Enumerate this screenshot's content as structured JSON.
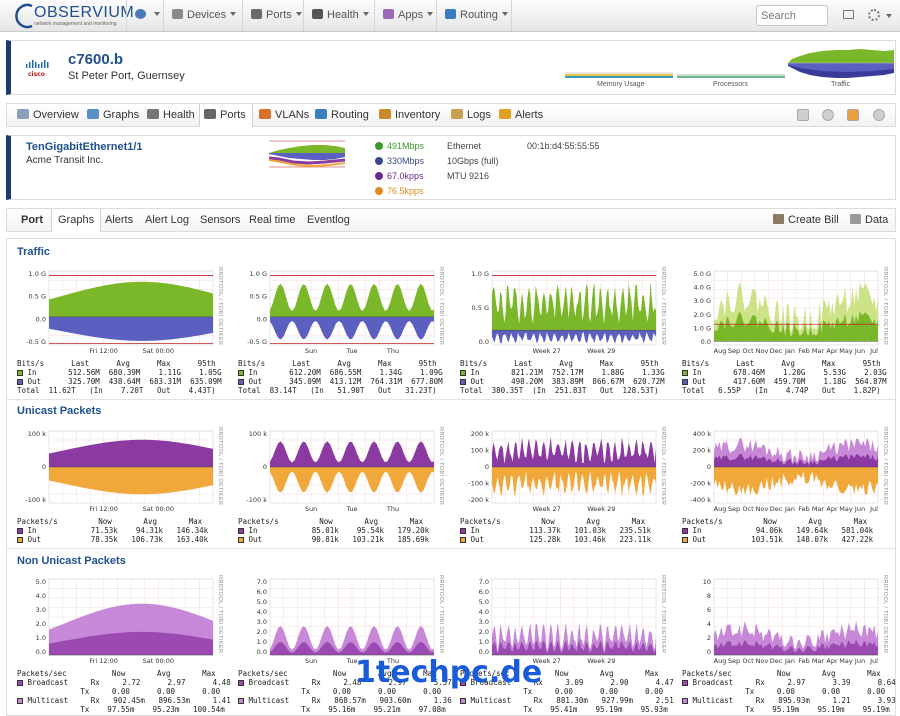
{
  "topnav": {
    "logo_text": "OBSERVIUM",
    "logo_sub": "network management and monitoring",
    "items": [
      {
        "label": "",
        "icon": "globe-icon"
      },
      {
        "label": "Devices",
        "icon": "server-icon"
      },
      {
        "label": "Ports",
        "icon": "port-icon"
      },
      {
        "label": "Health",
        "icon": "heart-monitor-icon"
      },
      {
        "label": "Apps",
        "icon": "apps-icon"
      },
      {
        "label": "Routing",
        "icon": "routing-icon"
      }
    ],
    "search_placeholder": "Search"
  },
  "device": {
    "name": "c7600.b",
    "location": "St Peter Port, Guernsey",
    "vendor_logo": "cisco",
    "mini_graphs": [
      {
        "label": "Memory Usage"
      },
      {
        "label": "Processors"
      },
      {
        "label": "Traffic"
      }
    ]
  },
  "device_tabs": [
    {
      "label": "Overview",
      "icon": "overview-icon",
      "color": "#8aa0b8"
    },
    {
      "label": "Graphs",
      "icon": "graphs-icon",
      "color": "#5a8fc8"
    },
    {
      "label": "Health",
      "icon": "health-icon",
      "color": "#777777"
    },
    {
      "label": "Ports",
      "icon": "ports-icon",
      "color": "#666666"
    },
    {
      "label": "VLANs",
      "icon": "vlans-icon",
      "color": "#d86f2a"
    },
    {
      "label": "Routing",
      "icon": "routing-icon",
      "color": "#3a7ec0"
    },
    {
      "label": "Inventory",
      "icon": "inventory-icon",
      "color": "#c88a2a"
    },
    {
      "label": "Logs",
      "icon": "logs-icon",
      "color": "#c8a050"
    },
    {
      "label": "Alerts",
      "icon": "alerts-icon",
      "color": "#e0a020"
    }
  ],
  "port": {
    "name": "TenGigabitEthernet1/1",
    "description": "Acme Transit Inc.",
    "stats": [
      {
        "value": "491Mbps",
        "color": "#3a9a2a"
      },
      {
        "value": "330Mbps",
        "color": "#3a4a8a"
      },
      {
        "value": "67.0kpps",
        "color": "#6a2a8a"
      },
      {
        "value": "76.5kpps",
        "color": "#e08a20"
      }
    ],
    "type": "Ethernet",
    "speed": "10Gbps (full)",
    "mtu": "MTU 9216",
    "mac": "00:1b:d4:55:55:55"
  },
  "port_tabs": [
    {
      "label": "Port"
    },
    {
      "label": "Graphs"
    },
    {
      "label": "Alerts"
    },
    {
      "label": "Alert Log"
    },
    {
      "label": "Sensors"
    },
    {
      "label": "Real time"
    },
    {
      "label": "Eventlog"
    }
  ],
  "port_actions": {
    "create_bill": "Create Bill",
    "data": "Data"
  },
  "rrd_label": "RRDTOOL / TOBI OETIKER",
  "sections": [
    {
      "title": "Traffic",
      "graphs": [
        {
          "yticks": [
            "1.0 G",
            "0.5 G",
            "0.0",
            "-0.5 G"
          ],
          "xticks": [
            "Fri 12:00",
            "Sat 00:00"
          ],
          "legend": [
            "Bits/s      Last      Avg      Max      95th",
            "In       512.56M  680.39M    1.11G    1.05G",
            "Out      325.70M  438.64M  683.31M  635.09M",
            "Total  11.62T   (In    7.20T   Out    4.43T)"
          ]
        },
        {
          "yticks": [
            "1.0 G",
            "0.5 G",
            "0.0",
            "-0.5 G"
          ],
          "xticks": [
            "Sun",
            "Tue",
            "Thu"
          ],
          "legend": [
            "Bits/s      Last      Avg      Max      95th",
            "In       612.20M  686.55M    1.34G    1.09G",
            "Out      345.09M  413.12M  764.31M  677.80M",
            "Total  83.14T   (In   51.90T   Out   31.23T)"
          ]
        },
        {
          "yticks": [
            "1.0 G",
            "0.5 G",
            "0.0"
          ],
          "xticks": [
            "Week 27",
            "Week 29"
          ],
          "legend": [
            "Bits/s      Last      Avg      Max      95th",
            "In       821.21M  752.17M    1.88G    1.33G",
            "Out      498.20M  383.89M  866.67M  620.72M",
            "Total  380.35T  (In  251.83T   Out  128.53T)"
          ]
        },
        {
          "yticks": [
            "5.0 G",
            "4.0 G",
            "3.0 G",
            "2.0 G",
            "1.0 G",
            "0.0"
          ],
          "xticks": [
            "Aug",
            "Sep",
            "Oct",
            "Nov",
            "Dec",
            "Jan",
            "Feb",
            "Mar",
            "Apr",
            "May",
            "Jun",
            "Jul"
          ],
          "legend": [
            "Bits/s      Last      Avg      Max      95th",
            "In       678.46M    1.20G    5.53G    2.03G",
            "Out      417.60M  459.70M    1.18G  564.87M",
            "Total   6.55P   (In    4.74P   Out    1.82P)"
          ]
        }
      ]
    },
    {
      "title": "Unicast Packets",
      "graphs": [
        {
          "yticks": [
            "100 k",
            "0",
            "-100 k"
          ],
          "xticks": [
            "Fri 12:00",
            "Sat 00:00"
          ],
          "legend": [
            "Packets/s         Now       Avg       Max",
            "In            71.53k    94.31k   146.34k",
            "Out           78.35k   106.73k   163.40k"
          ]
        },
        {
          "yticks": [
            "100 k",
            "0",
            "-100 k"
          ],
          "xticks": [
            "Sun",
            "Tue",
            "Thu"
          ],
          "legend": [
            "Packets/s         Now       Avg       Max",
            "In            85.01k    95.54k   179.20k",
            "Out           90.81k   103.21k   185.69k"
          ]
        },
        {
          "yticks": [
            "200 k",
            "100 k",
            "0",
            "-100 k",
            "-200 k"
          ],
          "xticks": [
            "Week 27",
            "Week 29"
          ],
          "legend": [
            "Packets/s         Now       Avg       Max",
            "In           113.37k   101.03k   235.51k",
            "Out          125.28k   103.46k   223.11k"
          ]
        },
        {
          "yticks": [
            "400 k",
            "200 k",
            "0",
            "-200 k",
            "-400 k"
          ],
          "xticks": [
            "Aug",
            "Sep",
            "Oct",
            "Nov",
            "Dec",
            "Jan",
            "Feb",
            "Mar",
            "Apr",
            "May",
            "Jun",
            "Jul"
          ],
          "legend": [
            "Packets/s         Now       Avg       Max",
            "In            94.06k   149.64k   581.04k",
            "Out          103.51k   148.07k   427.22k"
          ]
        }
      ]
    },
    {
      "title": "Non Unicast Packets",
      "graphs": [
        {
          "yticks": [
            "5.0",
            "4.0",
            "3.0",
            "2.0",
            "1.0",
            "0.0"
          ],
          "xticks": [
            "Fri 12:00",
            "Sat 00:00"
          ],
          "legend": [
            "Packets/sec          Now       Avg       Max",
            "Broadcast     Rx     2.72      2.97      4.48",
            "              Tx     0.00      0.00      0.00",
            "Multicast     Rx   902.45m   896.53m     1.41",
            "              Tx    97.55m    95.23m   100.54m"
          ]
        },
        {
          "yticks": [
            "7.0",
            "6.0",
            "5.0",
            "4.0",
            "3.0",
            "2.0",
            "1.0",
            "0.0"
          ],
          "xticks": [
            "Sun",
            "Tue",
            "Thu"
          ],
          "legend": [
            "Packets/sec          Now       Avg       Max",
            "Broadcast     Rx     2.48      2.97      5.37",
            "              Tx     0.00      0.00      0.00",
            "Multicast     Rx   868.57m   903.60m     1.36",
            "              Tx    95.16m    95.21m    97.08m"
          ]
        },
        {
          "yticks": [
            "7.0",
            "6.0",
            "5.0",
            "4.0",
            "3.0",
            "2.0",
            "1.0",
            "0.0"
          ],
          "xticks": [
            "Week 27",
            "Week 29"
          ],
          "legend": [
            "Packets/sec          Now       Avg       Max",
            "Broadcast     Rx     3.09      2.90      4.47",
            "              Tx     0.00      0.00      0.00",
            "Multicast     Rx   881.30m   927.99m     2.51",
            "              Tx    95.41m    95.19m    95.93m"
          ]
        },
        {
          "yticks": [
            "10",
            "8",
            "6",
            "4",
            "2",
            "0"
          ],
          "xticks": [
            "Aug",
            "Sep",
            "Oct",
            "Nov",
            "Dec",
            "Jan",
            "Feb",
            "Mar",
            "Apr",
            "May",
            "Jun",
            "Jul"
          ],
          "legend": [
            "Packets/sec          Now       Avg       Max",
            "Broadcast     Rx     2.97      3.39      8.64",
            "              Tx     0.00      0.00      0.00",
            "Multicast     Rx   895.93m     1.21      3.93",
            "              Tx    95.19m    95.19m    95.19m"
          ]
        }
      ]
    }
  ],
  "colors": {
    "in_green": "#7ab82a",
    "out_blue": "#5b5fbf",
    "unicast_in": "#8a3aa0",
    "unicast_out": "#f0a83a",
    "nonunicast": "#c888d8",
    "threshold": "#c02020"
  },
  "watermark": "1techpc.de"
}
